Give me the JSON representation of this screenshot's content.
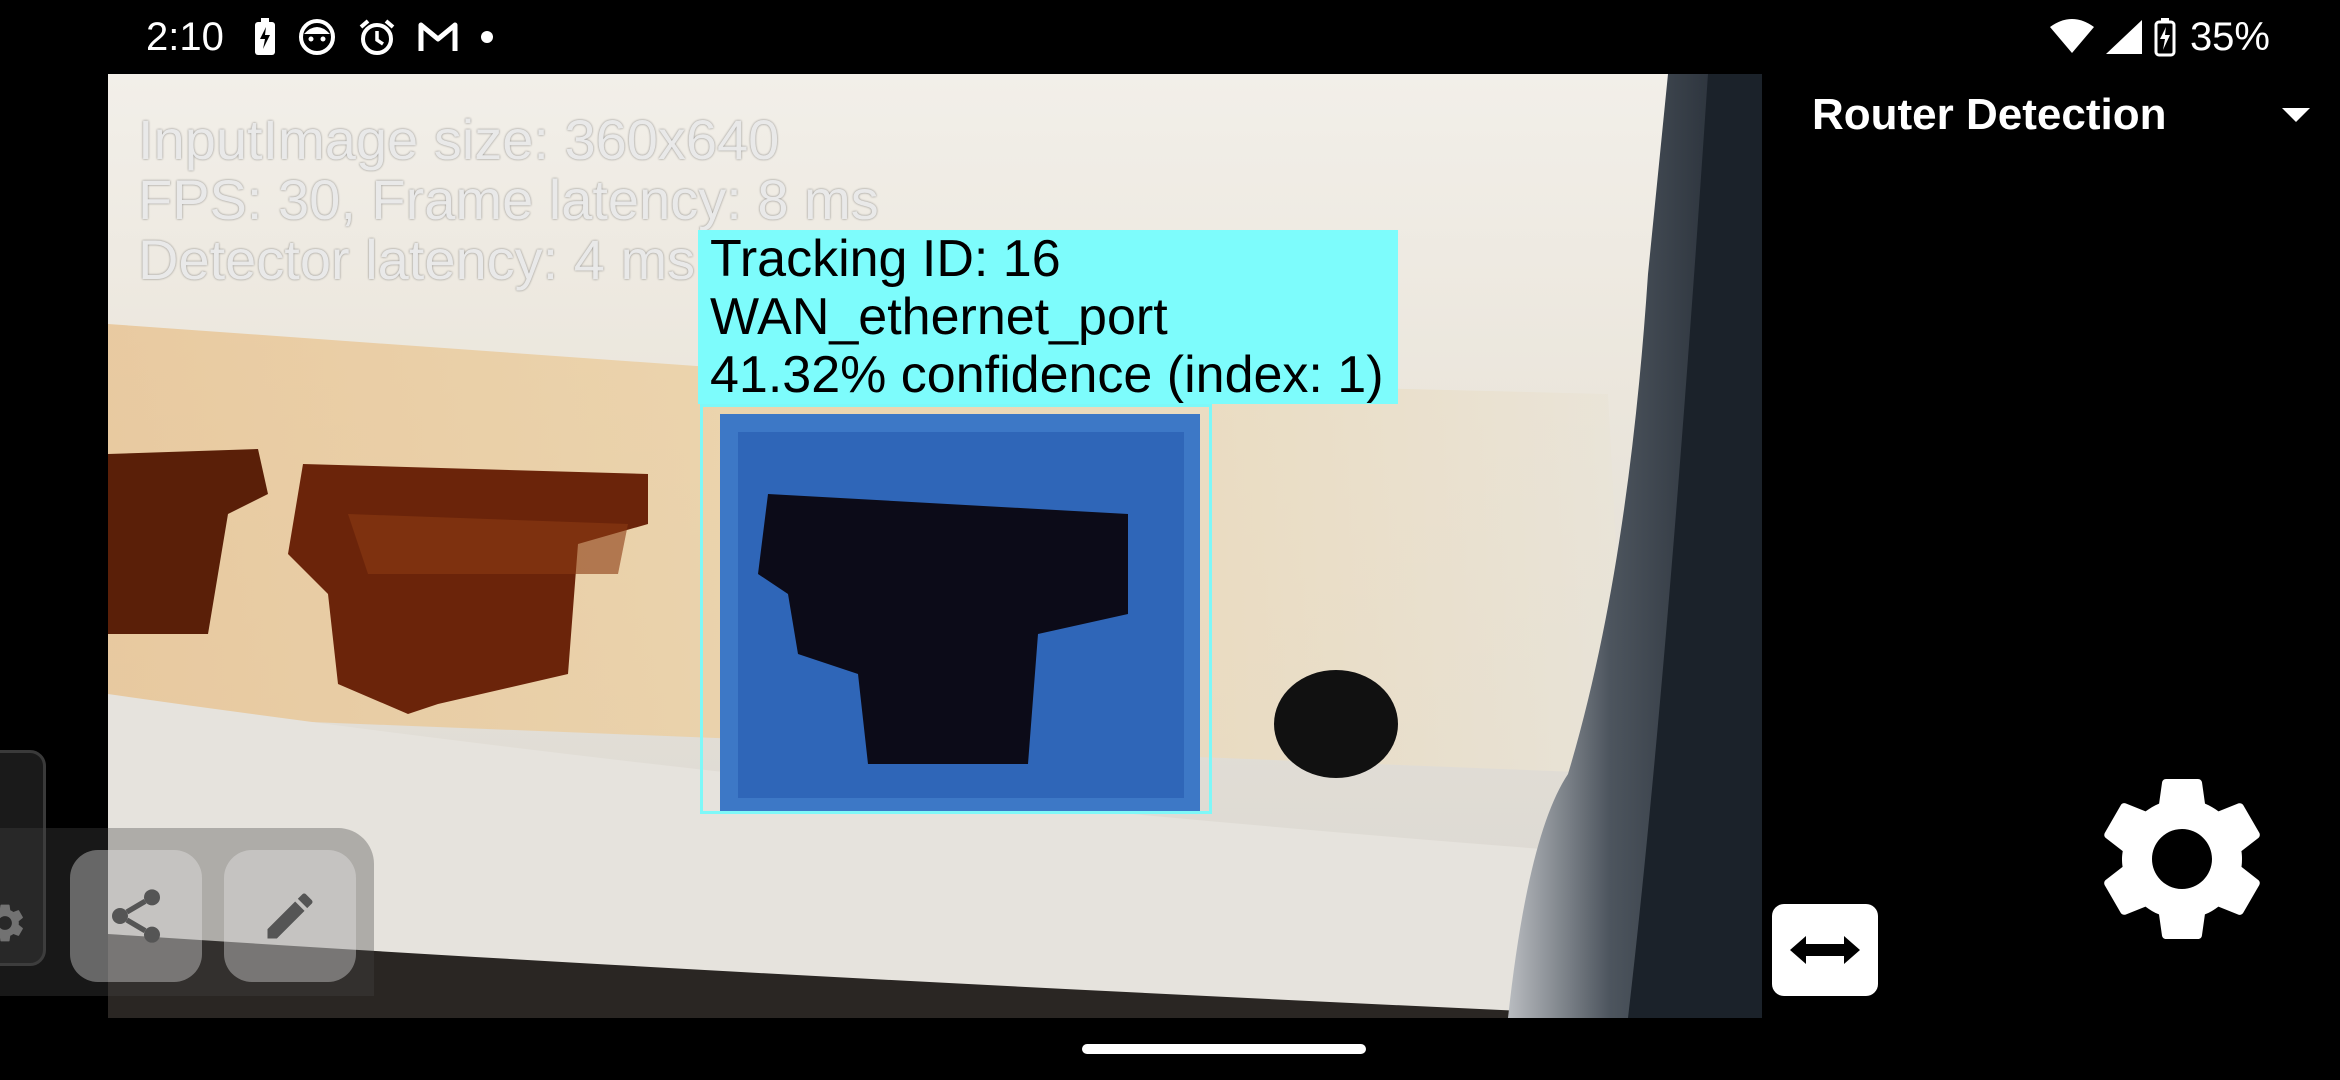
{
  "status_bar": {
    "time": "2:10",
    "battery_percent": "35%",
    "icons_left": [
      "battery-charging-icon",
      "face-icon",
      "alarm-icon",
      "gmail-icon",
      "dot-icon"
    ],
    "icons_right": [
      "wifi-icon",
      "signal-icon",
      "battery-icon"
    ]
  },
  "camera_preview": {
    "info": {
      "input_size": "InputImage size: 360x640",
      "fps": "FPS: 30, Frame latency: 8 ms",
      "detector_latency": "Detector latency: 4 ms"
    },
    "detection": {
      "tracking_id": "Tracking ID: 16",
      "label": "WAN_ethernet_port",
      "confidence": "41.32% confidence (index: 1)",
      "box_color": "#7ef8f8"
    }
  },
  "side_panel": {
    "model_selector": {
      "selected": "Router Detection"
    },
    "buttons": {
      "switch_camera": "switch-camera-icon",
      "settings": "gear-icon"
    }
  },
  "screenshot_toolbar": {
    "buttons": [
      "share-icon",
      "pencil-icon"
    ]
  }
}
